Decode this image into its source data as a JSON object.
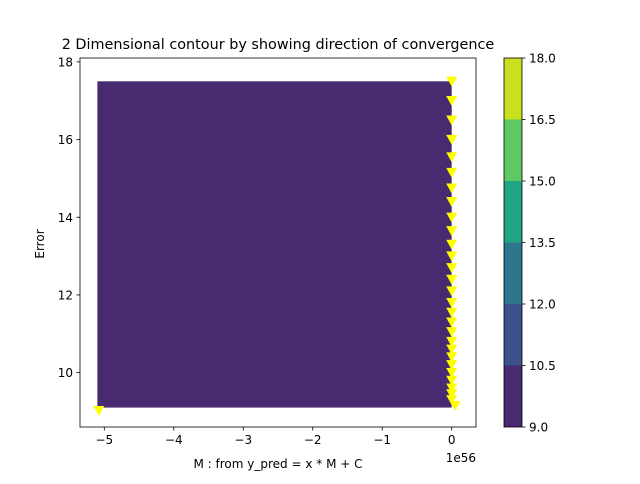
{
  "chart_data": {
    "type": "contour",
    "title": "2 Dimensional contour by showing direction of convergence",
    "xlabel": "M : from y_pred = x * M + C",
    "ylabel": "Error",
    "x_offset_text": "1e56",
    "xlim": [
      -5.35,
      0.35
    ],
    "ylim": [
      8.6,
      18.1
    ],
    "x_ticks": [
      {
        "value": -5,
        "label": "−5"
      },
      {
        "value": -4,
        "label": "−4"
      },
      {
        "value": -3,
        "label": "−3"
      },
      {
        "value": -2,
        "label": "−2"
      },
      {
        "value": -1,
        "label": "−1"
      },
      {
        "value": 0,
        "label": "0"
      }
    ],
    "y_ticks": [
      {
        "value": 10,
        "label": "10"
      },
      {
        "value": 12,
        "label": "12"
      },
      {
        "value": 14,
        "label": "14"
      },
      {
        "value": 16,
        "label": "16"
      },
      {
        "value": 18,
        "label": "18"
      }
    ],
    "contour_region": {
      "x": [
        -5.1,
        0.0
      ],
      "y": [
        9.1,
        17.5
      ],
      "level": [
        9.0,
        10.5
      ],
      "color": "#472a6f"
    },
    "colorbar": {
      "levels": [
        9.0,
        10.5,
        12.0,
        13.5,
        15.0,
        16.5,
        18.0
      ],
      "labels": [
        "9.0",
        "10.5",
        "12.0",
        "13.5",
        "15.0",
        "16.5",
        "18.0"
      ],
      "colors": [
        "#472a6f",
        "#3c528b",
        "#2d768e",
        "#21a685",
        "#5ec962",
        "#c8e020"
      ]
    },
    "markers": {
      "color": "#ffff00",
      "shape": "triangle-down",
      "points": [
        {
          "x": 0.0,
          "y": 17.5
        },
        {
          "x": 0.0,
          "y": 17.0
        },
        {
          "x": 0.0,
          "y": 16.5
        },
        {
          "x": 0.0,
          "y": 16.0
        },
        {
          "x": 0.0,
          "y": 15.55
        },
        {
          "x": 0.0,
          "y": 15.15
        },
        {
          "x": 0.0,
          "y": 14.75
        },
        {
          "x": 0.0,
          "y": 14.4
        },
        {
          "x": 0.0,
          "y": 14.0
        },
        {
          "x": 0.0,
          "y": 13.65
        },
        {
          "x": 0.0,
          "y": 13.3
        },
        {
          "x": 0.0,
          "y": 13.0
        },
        {
          "x": 0.0,
          "y": 12.7
        },
        {
          "x": 0.0,
          "y": 12.4
        },
        {
          "x": 0.0,
          "y": 12.1
        },
        {
          "x": 0.0,
          "y": 11.8
        },
        {
          "x": 0.0,
          "y": 11.55
        },
        {
          "x": 0.0,
          "y": 11.3
        },
        {
          "x": 0.0,
          "y": 11.05
        },
        {
          "x": 0.0,
          "y": 10.8
        },
        {
          "x": 0.0,
          "y": 10.6
        },
        {
          "x": 0.0,
          "y": 10.4
        },
        {
          "x": 0.0,
          "y": 10.2
        },
        {
          "x": 0.0,
          "y": 10.0
        },
        {
          "x": 0.0,
          "y": 9.8
        },
        {
          "x": 0.0,
          "y": 9.6
        },
        {
          "x": 0.0,
          "y": 9.45
        },
        {
          "x": 0.0,
          "y": 9.3
        },
        {
          "x": 0.05,
          "y": 9.15
        },
        {
          "x": -5.08,
          "y": 9.02
        }
      ]
    }
  }
}
